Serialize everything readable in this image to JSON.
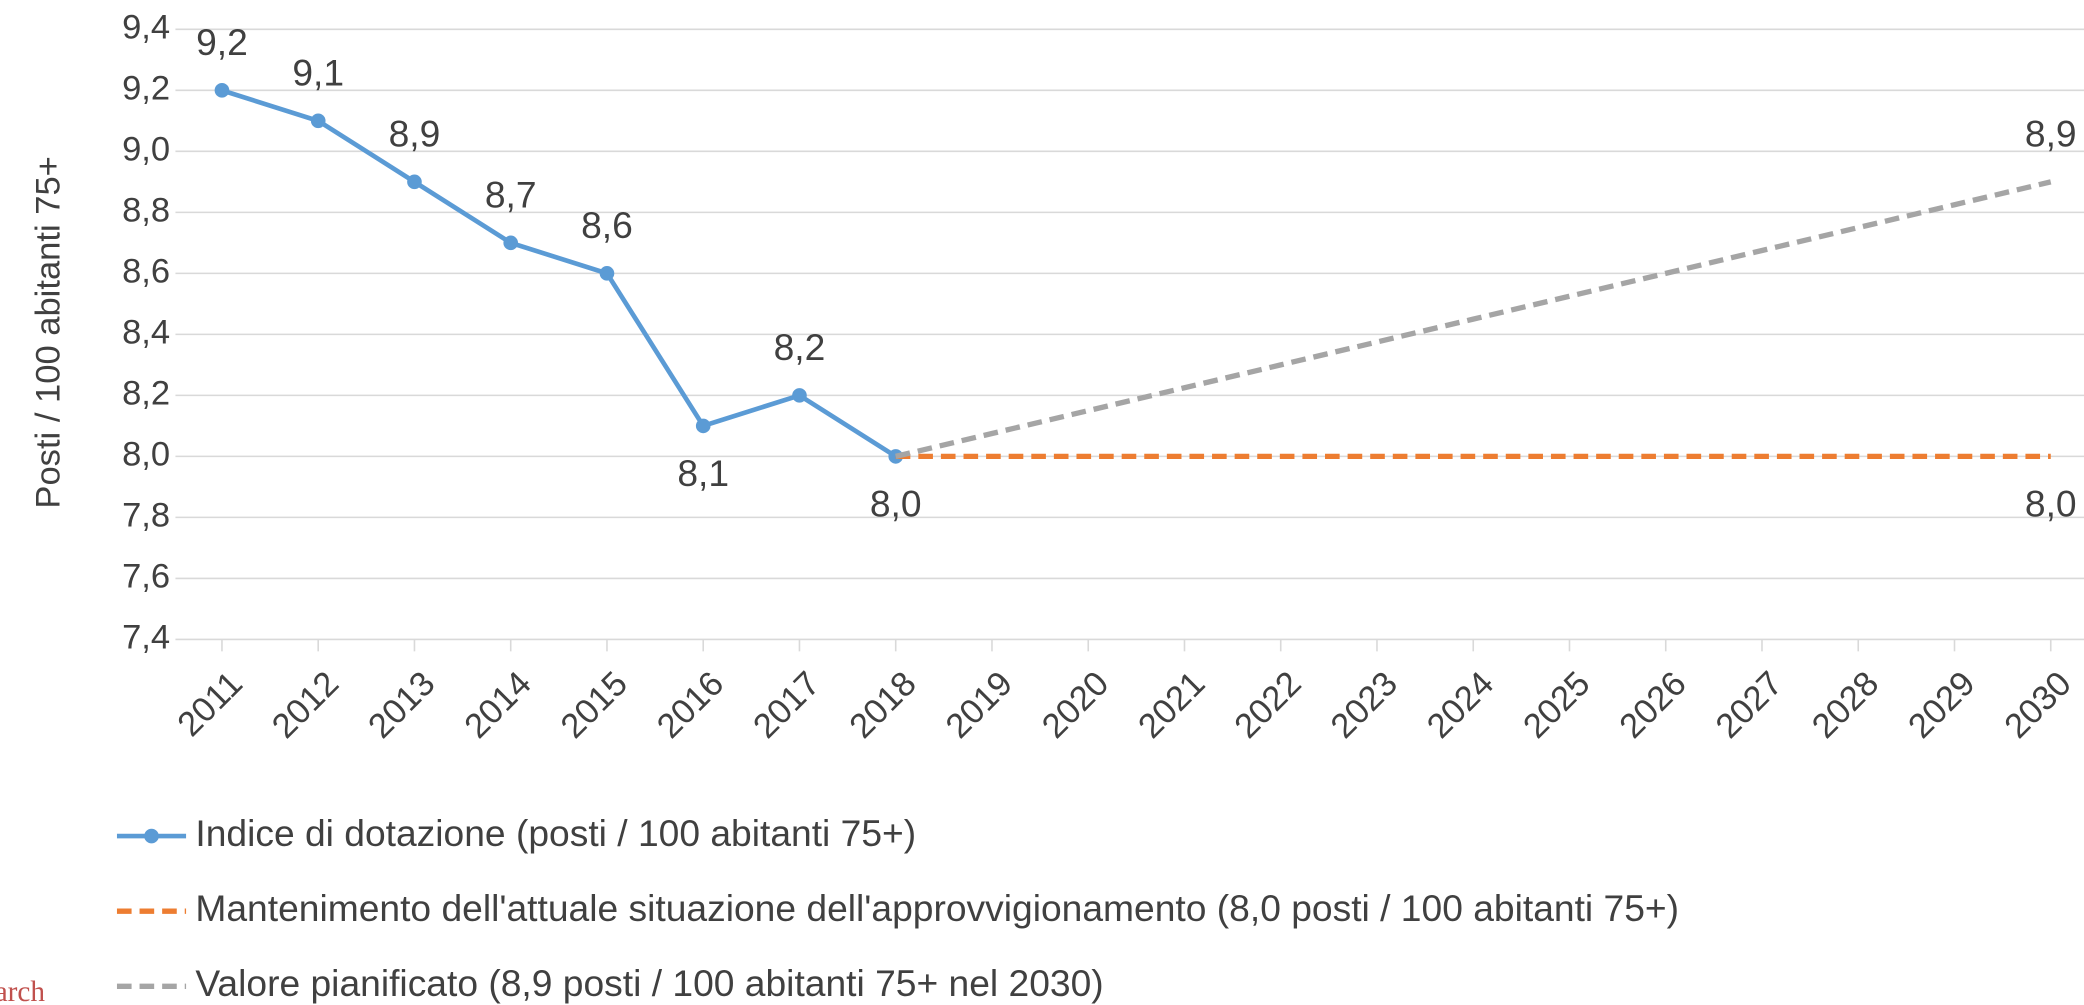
{
  "chart_data": {
    "type": "line",
    "ylabel": "Posti / 100 abitanti 75+",
    "categories": [
      "2011",
      "2012",
      "2013",
      "2014",
      "2015",
      "2016",
      "2017",
      "2018",
      "2019",
      "2020",
      "2021",
      "2022",
      "2023",
      "2024",
      "2025",
      "2026",
      "2027",
      "2028",
      "2029",
      "2030"
    ],
    "series": [
      {
        "name": "Indice di dotazione (posti / 100 abitanti 75+)",
        "color": "#5b9bd5",
        "dashed": false,
        "markers": true,
        "values": [
          9.2,
          9.1,
          8.9,
          8.7,
          8.6,
          8.1,
          8.2,
          8.0,
          null,
          null,
          null,
          null,
          null,
          null,
          null,
          null,
          null,
          null,
          null,
          null
        ],
        "value_labels": [
          "9,2",
          "9,1",
          "8,9",
          "8,7",
          "8,6",
          "8,1",
          "8,2",
          "8,0",
          null,
          null,
          null,
          null,
          null,
          null,
          null,
          null,
          null,
          null,
          null,
          null
        ]
      },
      {
        "name": "Mantenimento dell'attuale situazione dell'approvvigionamento (8,0 posti / 100 abitanti 75+)",
        "color": "#ed7d31",
        "dashed": true,
        "markers": false,
        "values": [
          null,
          null,
          null,
          null,
          null,
          null,
          null,
          8.0,
          8.0,
          8.0,
          8.0,
          8.0,
          8.0,
          8.0,
          8.0,
          8.0,
          8.0,
          8.0,
          8.0,
          8.0
        ],
        "value_labels": [
          null,
          null,
          null,
          null,
          null,
          null,
          null,
          null,
          null,
          null,
          null,
          null,
          null,
          null,
          null,
          null,
          null,
          null,
          null,
          "8,0"
        ]
      },
      {
        "name": "Valore pianificato (8,9 posti / 100 abitanti 75+ nel 2030)",
        "color": "#a5a5a5",
        "dashed": true,
        "markers": false,
        "values": [
          null,
          null,
          null,
          null,
          null,
          null,
          null,
          8.0,
          8.075,
          8.15,
          8.225,
          8.3,
          8.375,
          8.45,
          8.525,
          8.6,
          8.675,
          8.75,
          8.825,
          8.9
        ],
        "value_labels": [
          null,
          null,
          null,
          null,
          null,
          null,
          null,
          null,
          null,
          null,
          null,
          null,
          null,
          null,
          null,
          null,
          null,
          null,
          null,
          "8,9"
        ]
      }
    ],
    "ylim": [
      7.4,
      9.4
    ],
    "yticks": [
      {
        "value": 7.4,
        "label": "7,4"
      },
      {
        "value": 7.6,
        "label": "7,6"
      },
      {
        "value": 7.8,
        "label": "7,8"
      },
      {
        "value": 8.0,
        "label": "8,0"
      },
      {
        "value": 8.2,
        "label": "8,2"
      },
      {
        "value": 8.4,
        "label": "8,4"
      },
      {
        "value": 8.6,
        "label": "8,6"
      },
      {
        "value": 8.8,
        "label": "8,8"
      },
      {
        "value": 9.0,
        "label": "9,0"
      },
      {
        "value": 9.2,
        "label": "9,2"
      },
      {
        "value": 9.4,
        "label": "9,4"
      }
    ],
    "grid": true,
    "legend": "bottom",
    "source_fragment": "arch"
  }
}
